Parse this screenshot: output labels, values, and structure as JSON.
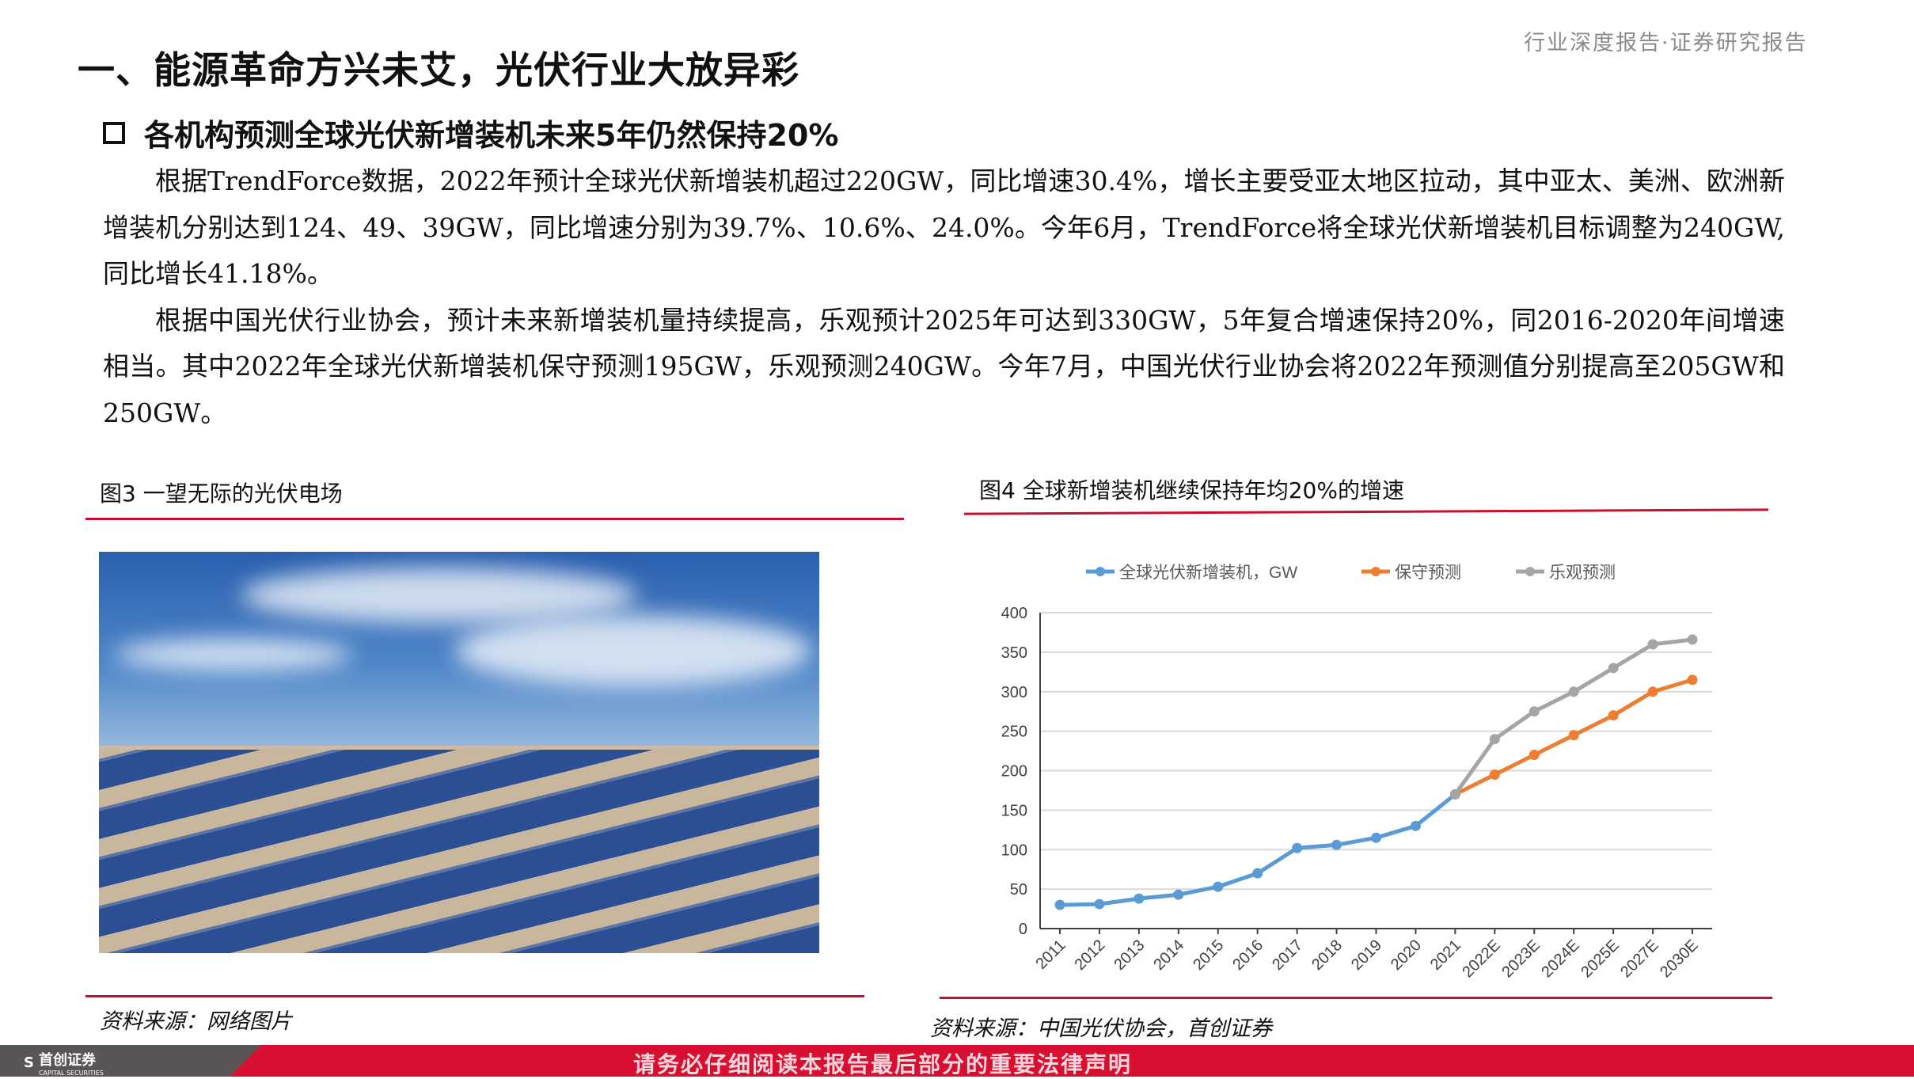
{
  "header": {
    "report_type": "行业深度报告·证券研究报告"
  },
  "title": "一、能源革命方兴未艾，光伏行业大放异彩",
  "subtitle": "各机构预测全球光伏新增装机未来5年仍然保持20%",
  "paragraphs": [
    "根据TrendForce数据，2022年预计全球光伏新增装机超过220GW，同比增速30.4%，增长主要受亚太地区拉动，其中亚太、美洲、欧洲新增装机分别达到124、49、39GW，同比增速分别为39.7%、10.6%、24.0%。今年6月，TrendForce将全球光伏新增装机目标调整为240GW, 同比增长41.18%。",
    "根据中国光伏行业协会，预计未来新增装机量持续提高，乐观预计2025年可达到330GW，5年复合增速保持20%，同2016-2020年间增速相当。其中2022年全球光伏新增装机保守预测195GW，乐观预测240GW。今年7月，中国光伏行业协会将2022年预测值分别提高至205GW和250GW。"
  ],
  "figure3": {
    "caption": "图3  一望无际的光伏电场",
    "source": "资料来源：网络图片"
  },
  "figure4": {
    "caption": "图4  全球新增装机继续保持年均20%的增速",
    "source": "资料来源：中国光伏协会，首创证券"
  },
  "footer": {
    "logo_text": "首创证券",
    "logo_sub": "CAPITAL SECURITIES",
    "notice": "请务必仔细阅读本报告最后部分的重要法律声明",
    "accent": "#d90f32"
  },
  "chart_data": {
    "type": "line",
    "categories": [
      "2011",
      "2012",
      "2013",
      "2014",
      "2015",
      "2016",
      "2017",
      "2018",
      "2019",
      "2020",
      "2021",
      "2022E",
      "2023E",
      "2024E",
      "2025E",
      "2027E",
      "2030E"
    ],
    "ylim": [
      0,
      400
    ],
    "yticks": [
      0,
      50,
      100,
      150,
      200,
      250,
      300,
      350,
      400
    ],
    "grid": true,
    "legend": "top",
    "series": [
      {
        "name": "全球光伏新增装机，GW",
        "color": "#5b9bd5",
        "values": [
          30,
          31,
          38,
          43,
          53,
          70,
          102,
          106,
          115,
          130,
          170,
          null,
          null,
          null,
          null,
          null,
          null
        ]
      },
      {
        "name": "保守预测",
        "color": "#ed7d31",
        "values": [
          null,
          null,
          null,
          null,
          null,
          null,
          null,
          null,
          null,
          null,
          170,
          195,
          220,
          245,
          270,
          300,
          315
        ]
      },
      {
        "name": "乐观预测",
        "color": "#a5a5a5",
        "values": [
          null,
          null,
          null,
          null,
          null,
          null,
          null,
          null,
          null,
          null,
          170,
          240,
          275,
          300,
          330,
          360,
          366
        ]
      }
    ]
  }
}
